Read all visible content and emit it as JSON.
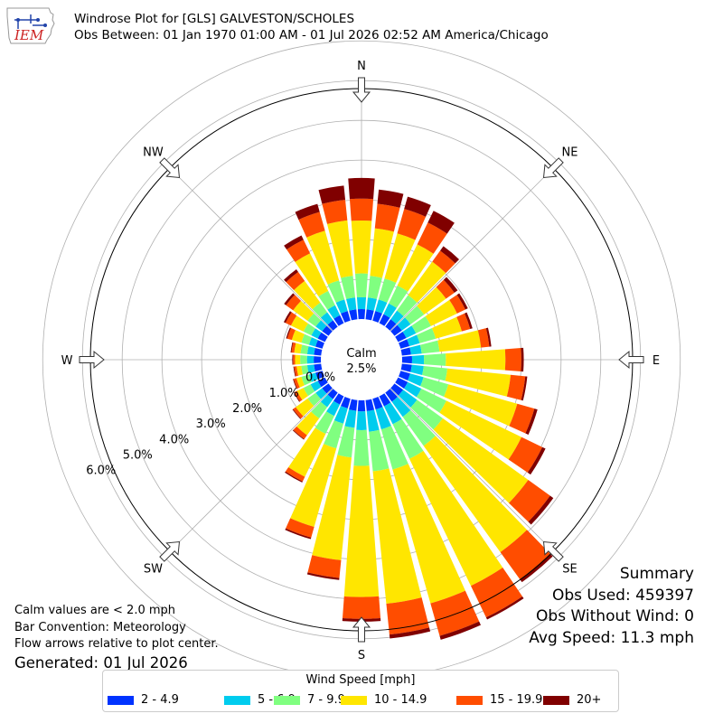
{
  "header": {
    "title_line1": "Windrose Plot for [GLS] GALVESTON/SCHOLES",
    "title_line2": "Obs Between: 01 Jan 1970 01:00 AM - 01 Jul 2026 02:52 AM America/Chicago"
  },
  "logo": {
    "text": "IEM"
  },
  "notes": {
    "line1": "Calm values are < 2.0 mph",
    "line2": "Bar Convention: Meteorology",
    "line3": "Flow arrows relative to plot center.",
    "generated": "Generated: 01 Jul 2026"
  },
  "summary": {
    "title": "Summary",
    "obs_used": "Obs Used: 459397",
    "obs_without_wind": "Obs Without Wind: 0",
    "avg_speed": "Avg Speed: 11.3 mph"
  },
  "chart_data": {
    "type": "windrose",
    "calm_label": "Calm",
    "calm_value": "2.5%",
    "compass_labels": [
      "N",
      "NE",
      "E",
      "SE",
      "S",
      "SW",
      "W",
      "NW"
    ],
    "radial_ticks": [
      "0.0%",
      "1.0%",
      "2.0%",
      "3.0%",
      "4.0%",
      "5.0%",
      "6.0%"
    ],
    "r_range": [
      0,
      7
    ],
    "calm_offset": 1.2,
    "legend_title": "Wind Speed [mph]",
    "bins": [
      {
        "label": "2 - 4.9",
        "color": "#0033ff"
      },
      {
        "label": "5 - 6.9",
        "color": "#00ccee"
      },
      {
        "label": "7 - 9.9",
        "color": "#80ff80"
      },
      {
        "label": "10 - 14.9",
        "color": "#ffe600"
      },
      {
        "label": "15 - 19.9",
        "color": "#ff4d00"
      },
      {
        "label": "20+",
        "color": "#800000"
      }
    ],
    "directions": [
      0,
      10,
      20,
      30,
      40,
      50,
      60,
      70,
      80,
      90,
      100,
      110,
      120,
      130,
      140,
      150,
      160,
      170,
      180,
      190,
      200,
      210,
      220,
      230,
      240,
      250,
      260,
      270,
      280,
      290,
      300,
      310,
      320,
      330,
      340,
      350
    ],
    "cumulative": [
      [
        0.25,
        0.55,
        1.15,
        2.48,
        3.03,
        3.55
      ],
      [
        0.25,
        0.55,
        1.1,
        2.3,
        2.92,
        3.28
      ],
      [
        0.25,
        0.55,
        1.1,
        2.28,
        2.92,
        3.24
      ],
      [
        0.25,
        0.55,
        1.05,
        2.2,
        2.81,
        3.14
      ],
      [
        0.23,
        0.5,
        0.98,
        2.02,
        2.36,
        2.5
      ],
      [
        0.23,
        0.5,
        0.92,
        1.6,
        1.86,
        1.96
      ],
      [
        0.23,
        0.5,
        0.92,
        1.65,
        1.88,
        1.95
      ],
      [
        0.23,
        0.5,
        0.92,
        1.6,
        1.82,
        1.88
      ],
      [
        0.23,
        0.5,
        0.95,
        2.0,
        2.21,
        2.26
      ],
      [
        0.25,
        0.55,
        1.1,
        2.6,
        3.0,
        3.06
      ],
      [
        0.25,
        0.55,
        1.15,
        2.75,
        3.12,
        3.17
      ],
      [
        0.25,
        0.6,
        1.25,
        3.05,
        3.5,
        3.58
      ],
      [
        0.27,
        0.65,
        1.35,
        3.45,
        4.03,
        4.12
      ],
      [
        0.27,
        0.7,
        1.5,
        4.15,
        4.83,
        4.93
      ],
      [
        0.28,
        0.75,
        1.65,
        4.95,
        5.8,
        5.88
      ],
      [
        0.28,
        0.78,
        1.75,
        5.3,
        6.18,
        6.24
      ],
      [
        0.28,
        0.8,
        1.85,
        5.35,
        6.2,
        6.3
      ],
      [
        0.28,
        0.8,
        1.8,
        5.15,
        5.93,
        6.03
      ],
      [
        0.28,
        0.75,
        1.65,
        4.95,
        5.5,
        5.57
      ],
      [
        0.27,
        0.7,
        1.45,
        4.05,
        4.5,
        4.55
      ],
      [
        0.25,
        0.65,
        1.3,
        3.35,
        3.63,
        3.67
      ],
      [
        0.23,
        0.55,
        1.05,
        2.25,
        2.38,
        2.41
      ],
      [
        0.2,
        0.45,
        0.8,
        1.32,
        1.44,
        1.46
      ],
      [
        0.2,
        0.4,
        0.65,
        1.02,
        1.1,
        1.12
      ],
      [
        0.2,
        0.4,
        0.6,
        0.78,
        0.85,
        0.87
      ],
      [
        0.18,
        0.35,
        0.55,
        0.68,
        0.75,
        0.77
      ],
      [
        0.18,
        0.35,
        0.5,
        0.62,
        0.68,
        0.7
      ],
      [
        0.18,
        0.35,
        0.52,
        0.65,
        0.7,
        0.72
      ],
      [
        0.18,
        0.35,
        0.52,
        0.68,
        0.75,
        0.77
      ],
      [
        0.18,
        0.35,
        0.55,
        0.8,
        0.92,
        0.95
      ],
      [
        0.2,
        0.38,
        0.6,
        0.95,
        1.1,
        1.15
      ],
      [
        0.2,
        0.4,
        0.65,
        1.1,
        1.32,
        1.38
      ],
      [
        0.2,
        0.45,
        0.75,
        1.42,
        1.7,
        1.78
      ],
      [
        0.22,
        0.5,
        0.9,
        1.95,
        2.33,
        2.45
      ],
      [
        0.25,
        0.55,
        1.05,
        2.35,
        2.84,
        3.05
      ],
      [
        0.25,
        0.55,
        1.1,
        2.5,
        3.02,
        3.38
      ]
    ]
  }
}
